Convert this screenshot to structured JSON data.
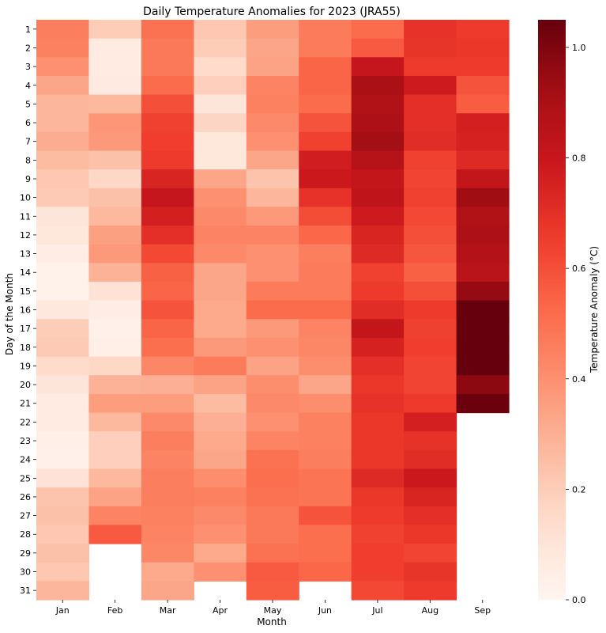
{
  "chart_data": {
    "type": "heatmap",
    "title": "Daily Temperature Anomalies for 2023 (JRA55)",
    "xlabel": "Month",
    "ylabel": "Day of the Month",
    "colorbar_label": "Temperature Anomaly (°C)",
    "colormap": "Reds",
    "vmin": 0.0,
    "vmax": 1.05,
    "colorbar_ticks": [
      "0.0",
      "0.2",
      "0.4",
      "0.6",
      "0.8",
      "1.0"
    ],
    "x_categories": [
      "Jan",
      "Feb",
      "Mar",
      "Apr",
      "May",
      "Jun",
      "Jul",
      "Aug",
      "Sep"
    ],
    "y_categories": [
      "1",
      "2",
      "3",
      "4",
      "5",
      "6",
      "7",
      "8",
      "9",
      "10",
      "11",
      "12",
      "13",
      "14",
      "15",
      "16",
      "17",
      "18",
      "19",
      "20",
      "21",
      "22",
      "23",
      "24",
      "25",
      "26",
      "27",
      "28",
      "29",
      "30",
      "31"
    ],
    "values": [
      [
        0.46,
        0.2,
        0.5,
        0.22,
        0.36,
        0.47,
        0.52,
        0.69,
        0.66
      ],
      [
        0.45,
        0.06,
        0.48,
        0.2,
        0.33,
        0.47,
        0.57,
        0.68,
        0.67
      ],
      [
        0.4,
        0.06,
        0.48,
        0.15,
        0.34,
        0.54,
        0.81,
        0.66,
        0.66
      ],
      [
        0.33,
        0.07,
        0.52,
        0.19,
        0.44,
        0.54,
        0.9,
        0.78,
        0.59
      ],
      [
        0.28,
        0.27,
        0.6,
        0.1,
        0.45,
        0.52,
        0.88,
        0.7,
        0.56
      ],
      [
        0.28,
        0.38,
        0.64,
        0.17,
        0.42,
        0.59,
        0.89,
        0.7,
        0.76
      ],
      [
        0.31,
        0.37,
        0.65,
        0.09,
        0.4,
        0.64,
        0.92,
        0.71,
        0.75
      ],
      [
        0.26,
        0.24,
        0.66,
        0.09,
        0.33,
        0.77,
        0.86,
        0.64,
        0.72
      ],
      [
        0.22,
        0.16,
        0.74,
        0.33,
        0.23,
        0.79,
        0.82,
        0.63,
        0.82
      ],
      [
        0.21,
        0.24,
        0.81,
        0.4,
        0.28,
        0.69,
        0.83,
        0.64,
        0.93
      ],
      [
        0.1,
        0.27,
        0.76,
        0.42,
        0.37,
        0.61,
        0.78,
        0.62,
        0.88
      ],
      [
        0.09,
        0.35,
        0.7,
        0.44,
        0.44,
        0.53,
        0.74,
        0.6,
        0.89
      ],
      [
        0.05,
        0.37,
        0.62,
        0.42,
        0.4,
        0.46,
        0.72,
        0.58,
        0.87
      ],
      [
        0.02,
        0.29,
        0.55,
        0.33,
        0.4,
        0.47,
        0.64,
        0.55,
        0.85
      ],
      [
        0.02,
        0.12,
        0.54,
        0.33,
        0.47,
        0.47,
        0.66,
        0.6,
        0.95
      ],
      [
        0.08,
        0.05,
        0.59,
        0.32,
        0.52,
        0.52,
        0.71,
        0.66,
        1.05
      ],
      [
        0.2,
        0.03,
        0.54,
        0.32,
        0.37,
        0.44,
        0.82,
        0.64,
        1.05
      ],
      [
        0.21,
        0.04,
        0.51,
        0.37,
        0.4,
        0.43,
        0.75,
        0.65,
        1.05
      ],
      [
        0.15,
        0.16,
        0.43,
        0.47,
        0.34,
        0.41,
        0.7,
        0.63,
        1.05
      ],
      [
        0.1,
        0.29,
        0.3,
        0.34,
        0.41,
        0.33,
        0.67,
        0.63,
        0.97
      ],
      [
        0.06,
        0.36,
        0.36,
        0.26,
        0.42,
        0.41,
        0.69,
        0.66,
        1.04
      ],
      [
        0.06,
        0.27,
        0.42,
        0.3,
        0.4,
        0.45,
        0.67,
        0.76,
        null
      ],
      [
        0.04,
        0.19,
        0.46,
        0.32,
        0.44,
        0.45,
        0.67,
        0.69,
        null
      ],
      [
        0.03,
        0.19,
        0.44,
        0.33,
        0.5,
        0.46,
        0.67,
        0.71,
        null
      ],
      [
        0.12,
        0.27,
        0.46,
        0.41,
        0.51,
        0.49,
        0.72,
        0.79,
        null
      ],
      [
        0.23,
        0.34,
        0.46,
        0.45,
        0.5,
        0.49,
        0.67,
        0.74,
        null
      ],
      [
        0.24,
        0.44,
        0.45,
        0.42,
        0.48,
        0.59,
        0.66,
        0.7,
        null
      ],
      [
        0.22,
        0.57,
        0.44,
        0.4,
        0.48,
        0.51,
        0.64,
        0.67,
        null
      ],
      [
        0.24,
        null,
        0.43,
        0.32,
        0.5,
        0.51,
        0.65,
        0.63,
        null
      ],
      [
        0.22,
        null,
        0.32,
        0.4,
        0.57,
        0.53,
        0.65,
        0.68,
        null
      ],
      [
        0.28,
        null,
        0.33,
        null,
        0.56,
        null,
        0.62,
        0.66,
        null
      ]
    ],
    "grid": false,
    "legend": "colorbar-right"
  }
}
